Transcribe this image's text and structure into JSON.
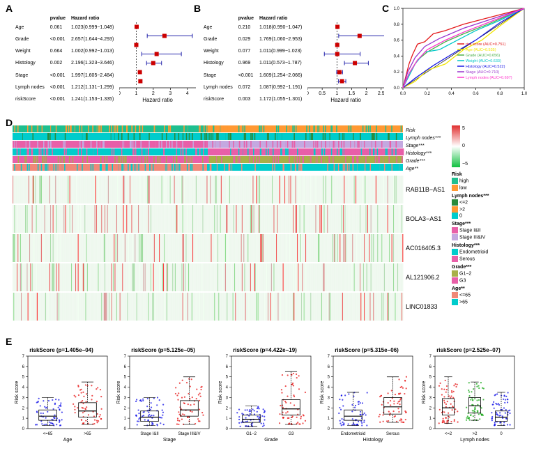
{
  "panelA": {
    "label": "A",
    "columns": [
      "",
      "pvalue",
      "Hazard ratio"
    ],
    "xlabel": "Hazard ratio",
    "xlim": [
      0,
      4.5
    ],
    "xticks": [
      0,
      1,
      2,
      3,
      4
    ],
    "ref": 1,
    "rows": [
      {
        "name": "Age",
        "p": "0.061",
        "hr": "1.023(0.999−1.048)",
        "est": 1.023,
        "lo": 0.999,
        "hi": 1.048
      },
      {
        "name": "Grade",
        "p": "<0.001",
        "hr": "2.657(1.644−4.293)",
        "est": 2.657,
        "lo": 1.644,
        "hi": 4.293
      },
      {
        "name": "Weight",
        "p": "0.664",
        "hr": "1.002(0.992−1.013)",
        "est": 1.002,
        "lo": 0.992,
        "hi": 1.013
      },
      {
        "name": "Histology",
        "p": "0.002",
        "hr": "2.196(1.323−3.646)",
        "est": 2.196,
        "lo": 1.323,
        "hi": 3.646
      },
      {
        "name": "Stage",
        "p": "<0.001",
        "hr": "1.997(1.605−2.484)",
        "est": 1.997,
        "lo": 1.605,
        "hi": 2.484
      },
      {
        "name": "Lymph nodes",
        "p": "<0.001",
        "hr": "1.212(1.131−1.299)",
        "est": 1.212,
        "lo": 1.131,
        "hi": 1.299
      },
      {
        "name": "riskScore",
        "p": "<0.001",
        "hr": "1.241(1.153−1.335)",
        "est": 1.241,
        "lo": 1.153,
        "hi": 1.335
      }
    ]
  },
  "panelB": {
    "label": "B",
    "columns": [
      "",
      "pvalue",
      "Hazard ratio"
    ],
    "xlabel": "Hazard ratio",
    "xlim": [
      0,
      2.6
    ],
    "xticks": [
      0,
      0.5,
      1.0,
      1.5,
      2.0,
      2.5
    ],
    "ref": 1,
    "rows": [
      {
        "name": "Age",
        "p": "0.210",
        "hr": "1.018(0.990−1.047)",
        "est": 1.018,
        "lo": 0.99,
        "hi": 1.047
      },
      {
        "name": "Grade",
        "p": "0.029",
        "hr": "1.769(1.060−2.953)",
        "est": 1.769,
        "lo": 1.06,
        "hi": 2.953
      },
      {
        "name": "Weight",
        "p": "0.077",
        "hr": "1.011(0.999−1.023)",
        "est": 1.011,
        "lo": 0.999,
        "hi": 1.023
      },
      {
        "name": "Histology",
        "p": "0.969",
        "hr": "1.011(0.573−1.787)",
        "est": 1.011,
        "lo": 0.573,
        "hi": 1.787
      },
      {
        "name": "Stage",
        "p": "<0.001",
        "hr": "1.609(1.254−2.066)",
        "est": 1.609,
        "lo": 1.254,
        "hi": 2.066
      },
      {
        "name": "Lymph nodes",
        "p": "0.072",
        "hr": "1.087(0.992−1.191)",
        "est": 1.087,
        "lo": 0.992,
        "hi": 1.191
      },
      {
        "name": "riskScore",
        "p": "0.003",
        "hr": "1.172(1.055−1.301)",
        "est": 1.172,
        "lo": 1.055,
        "hi": 1.301
      }
    ]
  },
  "panelC": {
    "label": "C",
    "xlim": [
      0,
      1
    ],
    "ylim": [
      0,
      1
    ],
    "ticks": [
      0,
      0.2,
      0.4,
      0.6,
      0.8,
      1.0
    ],
    "diag_color": "#000000",
    "curves": [
      {
        "color": "#e41a1c",
        "label": "risk score (AUC=0.751)",
        "pts": [
          [
            0,
            0
          ],
          [
            0.02,
            0.12
          ],
          [
            0.05,
            0.3
          ],
          [
            0.08,
            0.42
          ],
          [
            0.12,
            0.55
          ],
          [
            0.18,
            0.58
          ],
          [
            0.25,
            0.68
          ],
          [
            0.35,
            0.72
          ],
          [
            0.5,
            0.8
          ],
          [
            0.7,
            0.88
          ],
          [
            1,
            1
          ]
        ]
      },
      {
        "color": "#f2e600",
        "label": "Age (AUC=0.535)",
        "pts": [
          [
            0,
            0
          ],
          [
            0.1,
            0.08
          ],
          [
            0.2,
            0.22
          ],
          [
            0.35,
            0.3
          ],
          [
            0.5,
            0.48
          ],
          [
            0.65,
            0.6
          ],
          [
            0.8,
            0.78
          ],
          [
            1,
            1
          ]
        ]
      },
      {
        "color": "#4daf4a",
        "label": "Grade (AUC=0.656)",
        "pts": [
          [
            0,
            0
          ],
          [
            0.05,
            0.18
          ],
          [
            0.12,
            0.35
          ],
          [
            0.2,
            0.45
          ],
          [
            0.35,
            0.58
          ],
          [
            0.5,
            0.68
          ],
          [
            0.7,
            0.8
          ],
          [
            1,
            1
          ]
        ]
      },
      {
        "color": "#00c8c8",
        "label": "Weight (AUC=0.633)",
        "pts": [
          [
            0,
            0
          ],
          [
            0.05,
            0.15
          ],
          [
            0.1,
            0.3
          ],
          [
            0.18,
            0.45
          ],
          [
            0.3,
            0.48
          ],
          [
            0.45,
            0.6
          ],
          [
            0.6,
            0.72
          ],
          [
            0.8,
            0.85
          ],
          [
            1,
            1
          ]
        ]
      },
      {
        "color": "#1a1ae6",
        "label": "Histology (AUC=0.522)",
        "pts": [
          [
            0,
            0
          ],
          [
            0.1,
            0.12
          ],
          [
            0.25,
            0.28
          ],
          [
            0.4,
            0.42
          ],
          [
            0.6,
            0.6
          ],
          [
            0.8,
            0.82
          ],
          [
            1,
            1
          ]
        ]
      },
      {
        "color": "#9933cc",
        "label": "Stage (AUC=0.710)",
        "pts": [
          [
            0,
            0
          ],
          [
            0.04,
            0.2
          ],
          [
            0.1,
            0.38
          ],
          [
            0.18,
            0.52
          ],
          [
            0.3,
            0.62
          ],
          [
            0.5,
            0.75
          ],
          [
            0.7,
            0.85
          ],
          [
            1,
            1
          ]
        ]
      },
      {
        "color": "#ff33cc",
        "label": "Lymph nodes (AUC=0.697)",
        "pts": [
          [
            0,
            0
          ],
          [
            0.05,
            0.18
          ],
          [
            0.12,
            0.35
          ],
          [
            0.2,
            0.48
          ],
          [
            0.35,
            0.6
          ],
          [
            0.5,
            0.7
          ],
          [
            0.7,
            0.82
          ],
          [
            1,
            1
          ]
        ]
      }
    ]
  },
  "panelD": {
    "label": "D",
    "annotation_tracks": [
      {
        "name": "Risk",
        "italic": true,
        "colors": [
          "#1fbf8f",
          "#ff9933"
        ],
        "splits": [
          0.5
        ]
      },
      {
        "name": "Lymph nodes***",
        "italic": true,
        "colors": [
          "#00cccc",
          "#2a8a3a",
          "#00cccc"
        ],
        "splits": [
          0.5,
          0.53
        ]
      },
      {
        "name": "Stage***",
        "italic": true,
        "colors": [
          "#e85fa8",
          "#c4a8e0"
        ],
        "splits": [
          0.5
        ]
      },
      {
        "name": "Histology***",
        "italic": true,
        "colors": [
          "#00cccc",
          "#e85fa8"
        ],
        "splits": [
          0.5
        ]
      },
      {
        "name": "Grade***",
        "italic": true,
        "colors": [
          "#e85fa8",
          "#a8b048"
        ],
        "splits": [
          0.5
        ]
      },
      {
        "name": "Age**",
        "italic": true,
        "colors": [
          "#f08878",
          "#00cccc"
        ],
        "splits": [
          0.5
        ]
      }
    ],
    "heat_rows": [
      "RAB11B−AS1",
      "BOLA3−AS1",
      "AC016405.3",
      "AL121906.2",
      "LINC01833"
    ],
    "heat_colors": {
      "high": "#e03030",
      "mid": "#f0fff0",
      "low": "#10c040"
    },
    "scale": {
      "labels": [
        "5",
        "0",
        "−5"
      ],
      "colors": [
        "#e03030",
        "#ffffff",
        "#10c040"
      ]
    },
    "legends": {
      "Risk": [
        {
          "c": "#1fbf8f",
          "t": "high"
        },
        {
          "c": "#ff9933",
          "t": "low"
        }
      ],
      "Lymph nodes***": [
        {
          "c": "#2a8a3a",
          "t": "<=2"
        },
        {
          "c": "#ff9933",
          "t": ">2"
        },
        {
          "c": "#00cccc",
          "t": "0"
        }
      ],
      "Stage***": [
        {
          "c": "#e85fa8",
          "t": "Stage I&II"
        },
        {
          "c": "#c4a8e0",
          "t": "Stage III&IV"
        }
      ],
      "Histology***": [
        {
          "c": "#00cccc",
          "t": "Endometrioid"
        },
        {
          "c": "#e85fa8",
          "t": "Serous"
        }
      ],
      "Grade***": [
        {
          "c": "#a8b048",
          "t": "G1−2"
        },
        {
          "c": "#e85fa8",
          "t": "G3"
        }
      ],
      "Age**": [
        {
          "c": "#f08878",
          "t": "<=65"
        },
        {
          "c": "#00cccc",
          "t": ">65"
        }
      ]
    }
  },
  "panelE": {
    "label": "E",
    "ylabel": "Risk score",
    "plots": [
      {
        "title": "riskScore (p=1.405e−04)",
        "xlabel": "Age",
        "groups": [
          {
            "name": "<=65",
            "color": "#0000e6",
            "med": 1.2,
            "q1": 0.8,
            "q3": 1.8,
            "lo": 0.3,
            "hi": 3.0
          },
          {
            "name": ">65",
            "color": "#e60000",
            "med": 1.7,
            "q1": 1.1,
            "q3": 2.5,
            "lo": 0.4,
            "hi": 4.5
          }
        ],
        "ylim": [
          0,
          7
        ],
        "yticks": [
          0,
          1,
          2,
          3,
          4,
          5,
          6,
          7
        ]
      },
      {
        "title": "riskScore (p=5.125e−05)",
        "xlabel": "Stage",
        "groups": [
          {
            "name": "Stage I&II",
            "color": "#0000e6",
            "med": 1.1,
            "q1": 0.7,
            "q3": 1.7,
            "lo": 0.3,
            "hi": 3.0
          },
          {
            "name": "Stage III&IV",
            "color": "#e60000",
            "med": 1.8,
            "q1": 1.2,
            "q3": 2.7,
            "lo": 0.4,
            "hi": 5.0
          }
        ],
        "ylim": [
          0,
          7
        ],
        "yticks": [
          0,
          1,
          2,
          3,
          4,
          5,
          6,
          7
        ]
      },
      {
        "title": "riskScore (p=4.422e−19)",
        "xlabel": "Grade",
        "groups": [
          {
            "name": "G1−2",
            "color": "#0000e6",
            "med": 0.9,
            "q1": 0.6,
            "q3": 1.3,
            "lo": 0.2,
            "hi": 2.2
          },
          {
            "name": "G3",
            "color": "#e60000",
            "med": 1.9,
            "q1": 1.3,
            "q3": 2.8,
            "lo": 0.4,
            "hi": 5.5
          }
        ],
        "ylim": [
          0,
          7
        ],
        "yticks": [
          0,
          1,
          2,
          3,
          4,
          5,
          6,
          7
        ]
      },
      {
        "title": "riskScore (p=5.315e−06)",
        "xlabel": "Histology",
        "groups": [
          {
            "name": "Endometrioid",
            "color": "#0000e6",
            "med": 1.2,
            "q1": 0.8,
            "q3": 1.8,
            "lo": 0.3,
            "hi": 3.5
          },
          {
            "name": "Serous",
            "color": "#e60000",
            "med": 2.1,
            "q1": 1.4,
            "q3": 3.0,
            "lo": 0.6,
            "hi": 5.0
          }
        ],
        "ylim": [
          0,
          7
        ],
        "yticks": [
          0,
          1,
          2,
          3,
          4,
          5,
          6,
          7
        ]
      },
      {
        "title": "riskScore (p=2.525e−07)",
        "xlabel": "Lymph nodes",
        "groups": [
          {
            "name": "<=2",
            "color": "#e60000",
            "med": 2.0,
            "q1": 1.3,
            "q3": 2.9,
            "lo": 0.5,
            "hi": 5.0
          },
          {
            "name": ">2",
            "color": "#00a000",
            "med": 2.2,
            "q1": 1.5,
            "q3": 3.0,
            "lo": 0.8,
            "hi": 4.5
          },
          {
            "name": "0",
            "color": "#0000e6",
            "med": 1.1,
            "q1": 0.7,
            "q3": 1.7,
            "lo": 0.3,
            "hi": 3.5
          }
        ],
        "ylim": [
          0,
          7
        ],
        "yticks": [
          0,
          1,
          2,
          3,
          4,
          5,
          6,
          7
        ]
      }
    ]
  }
}
